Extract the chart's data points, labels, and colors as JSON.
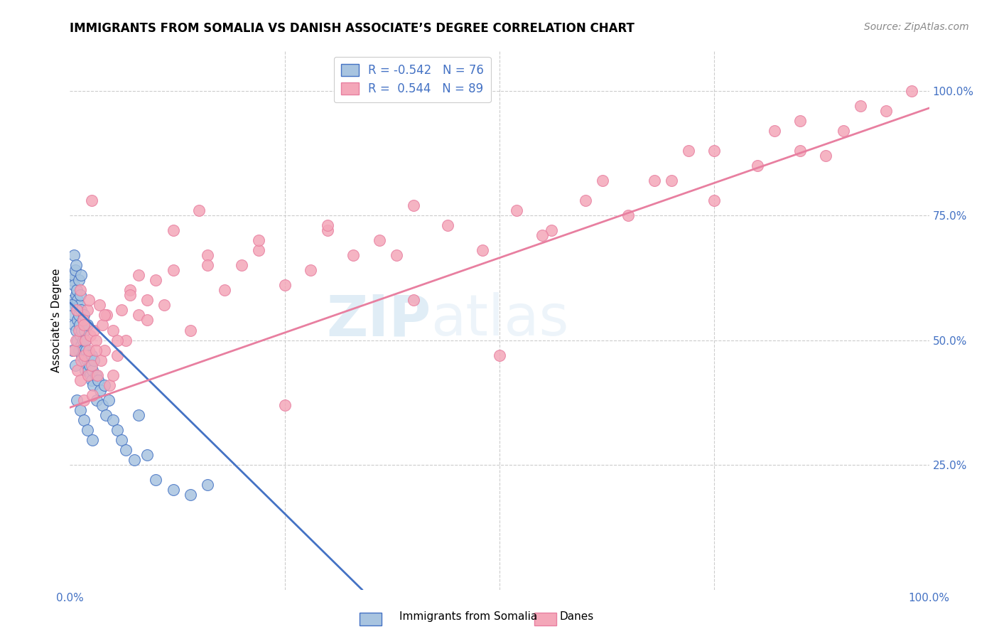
{
  "title": "IMMIGRANTS FROM SOMALIA VS DANISH ASSOCIATE’S DEGREE CORRELATION CHART",
  "source": "Source: ZipAtlas.com",
  "ylabel": "Associate's Degree",
  "right_yticks": [
    "100.0%",
    "75.0%",
    "50.0%",
    "25.0%"
  ],
  "right_ytick_vals": [
    1.0,
    0.75,
    0.5,
    0.25
  ],
  "watermark_zip": "ZIP",
  "watermark_atlas": "atlas",
  "legend_label1": "Immigrants from Somalia",
  "legend_label2": "Danes",
  "legend_r1": "R = -0.542",
  "legend_n1": "N = 76",
  "legend_r2": "R =  0.544",
  "legend_n2": "N = 89",
  "color_somalia": "#a8c4e0",
  "color_danes": "#f4a7b9",
  "color_line_somalia": "#4472c4",
  "color_line_danes": "#e87fa0",
  "color_axis": "#4472c4",
  "somalia_x": [
    0.002,
    0.003,
    0.004,
    0.004,
    0.005,
    0.005,
    0.005,
    0.006,
    0.006,
    0.007,
    0.007,
    0.007,
    0.008,
    0.008,
    0.009,
    0.009,
    0.009,
    0.01,
    0.01,
    0.01,
    0.011,
    0.011,
    0.012,
    0.012,
    0.013,
    0.013,
    0.013,
    0.014,
    0.014,
    0.015,
    0.015,
    0.016,
    0.016,
    0.017,
    0.017,
    0.018,
    0.018,
    0.019,
    0.02,
    0.02,
    0.021,
    0.022,
    0.023,
    0.024,
    0.025,
    0.025,
    0.026,
    0.027,
    0.028,
    0.03,
    0.031,
    0.033,
    0.035,
    0.038,
    0.04,
    0.042,
    0.045,
    0.05,
    0.055,
    0.06,
    0.065,
    0.075,
    0.08,
    0.09,
    0.1,
    0.12,
    0.14,
    0.16,
    0.002,
    0.003,
    0.006,
    0.008,
    0.012,
    0.016,
    0.02,
    0.026
  ],
  "somalia_y": [
    0.62,
    0.58,
    0.63,
    0.55,
    0.67,
    0.61,
    0.53,
    0.64,
    0.57,
    0.59,
    0.52,
    0.65,
    0.56,
    0.6,
    0.54,
    0.58,
    0.5,
    0.55,
    0.62,
    0.48,
    0.57,
    0.53,
    0.51,
    0.59,
    0.56,
    0.49,
    0.63,
    0.52,
    0.47,
    0.54,
    0.5,
    0.48,
    0.55,
    0.52,
    0.46,
    0.5,
    0.44,
    0.48,
    0.46,
    0.53,
    0.44,
    0.47,
    0.45,
    0.43,
    0.47,
    0.42,
    0.44,
    0.41,
    0.46,
    0.43,
    0.38,
    0.42,
    0.4,
    0.37,
    0.41,
    0.35,
    0.38,
    0.34,
    0.32,
    0.3,
    0.28,
    0.26,
    0.35,
    0.27,
    0.22,
    0.2,
    0.19,
    0.21,
    0.57,
    0.48,
    0.45,
    0.38,
    0.36,
    0.34,
    0.32,
    0.3
  ],
  "danes_x": [
    0.005,
    0.007,
    0.009,
    0.01,
    0.012,
    0.013,
    0.015,
    0.016,
    0.017,
    0.018,
    0.02,
    0.021,
    0.022,
    0.024,
    0.025,
    0.026,
    0.028,
    0.03,
    0.032,
    0.034,
    0.036,
    0.038,
    0.04,
    0.043,
    0.046,
    0.05,
    0.055,
    0.06,
    0.065,
    0.07,
    0.08,
    0.09,
    0.1,
    0.11,
    0.12,
    0.14,
    0.16,
    0.18,
    0.2,
    0.22,
    0.25,
    0.28,
    0.3,
    0.33,
    0.36,
    0.4,
    0.44,
    0.48,
    0.52,
    0.56,
    0.6,
    0.65,
    0.7,
    0.75,
    0.8,
    0.85,
    0.9,
    0.95,
    0.98,
    0.008,
    0.012,
    0.016,
    0.022,
    0.03,
    0.04,
    0.055,
    0.07,
    0.09,
    0.12,
    0.16,
    0.22,
    0.3,
    0.4,
    0.55,
    0.68,
    0.75,
    0.82,
    0.88,
    0.92,
    0.025,
    0.05,
    0.08,
    0.15,
    0.25,
    0.38,
    0.5,
    0.62,
    0.72,
    0.85
  ],
  "danes_y": [
    0.48,
    0.5,
    0.44,
    0.52,
    0.42,
    0.46,
    0.54,
    0.38,
    0.47,
    0.5,
    0.56,
    0.43,
    0.48,
    0.51,
    0.45,
    0.39,
    0.52,
    0.5,
    0.43,
    0.57,
    0.46,
    0.53,
    0.48,
    0.55,
    0.41,
    0.52,
    0.47,
    0.56,
    0.5,
    0.6,
    0.55,
    0.58,
    0.62,
    0.57,
    0.64,
    0.52,
    0.67,
    0.6,
    0.65,
    0.68,
    0.61,
    0.64,
    0.72,
    0.67,
    0.7,
    0.58,
    0.73,
    0.68,
    0.76,
    0.72,
    0.78,
    0.75,
    0.82,
    0.78,
    0.85,
    0.88,
    0.92,
    0.96,
    1.0,
    0.56,
    0.6,
    0.53,
    0.58,
    0.48,
    0.55,
    0.5,
    0.59,
    0.54,
    0.72,
    0.65,
    0.7,
    0.73,
    0.77,
    0.71,
    0.82,
    0.88,
    0.92,
    0.87,
    0.97,
    0.78,
    0.43,
    0.63,
    0.76,
    0.37,
    0.67,
    0.47,
    0.82,
    0.88,
    0.94
  ],
  "somalia_line_x": [
    0.0,
    0.34
  ],
  "somalia_line_y": [
    0.575,
    0.0
  ],
  "danes_line_x": [
    0.0,
    1.0
  ],
  "danes_line_y": [
    0.365,
    0.965
  ],
  "xlim": [
    0.0,
    1.0
  ],
  "ylim": [
    0.0,
    1.08
  ]
}
